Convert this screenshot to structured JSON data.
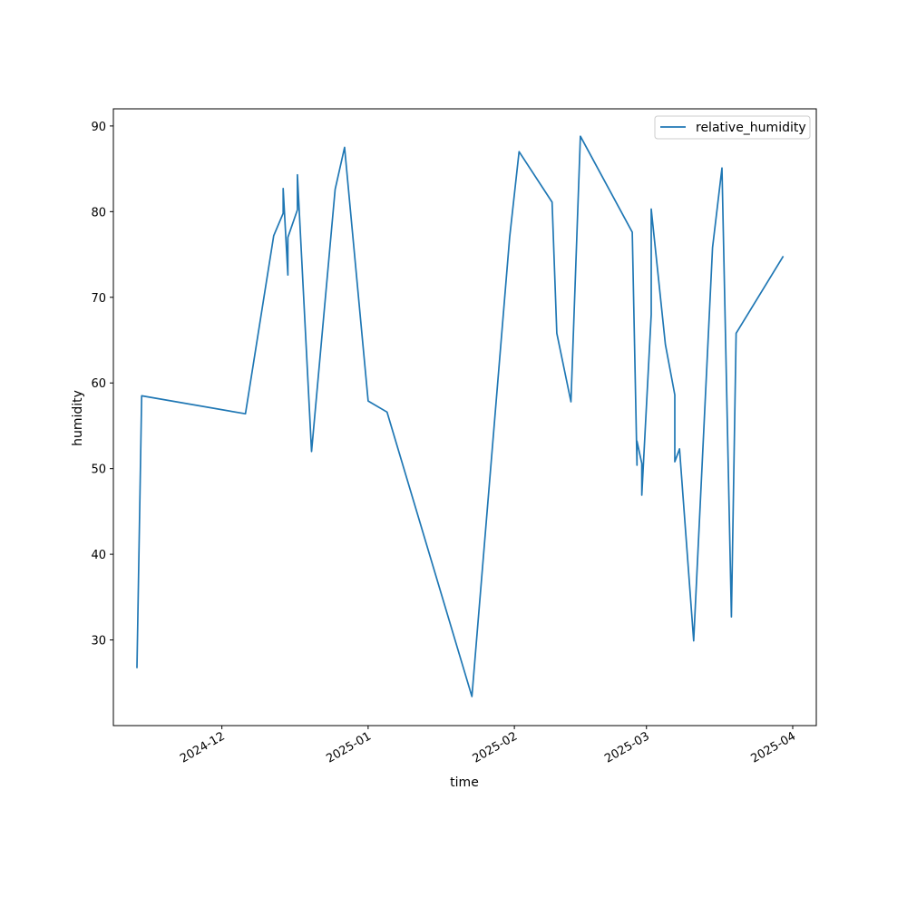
{
  "chart_data": {
    "type": "line",
    "title": "",
    "xlabel": "time",
    "ylabel": "humidity",
    "x_ticks": [
      {
        "date": "2024-12-01",
        "label": "2024-12"
      },
      {
        "date": "2025-01-01",
        "label": "2025-01"
      },
      {
        "date": "2025-02-01",
        "label": "2025-02"
      },
      {
        "date": "2025-03-01",
        "label": "2025-03"
      },
      {
        "date": "2025-04-01",
        "label": "2025-04"
      }
    ],
    "y_ticks": [
      30,
      40,
      50,
      60,
      70,
      80,
      90
    ],
    "xlim": [
      "2024-11-08",
      "2025-04-06"
    ],
    "ylim": [
      20,
      92
    ],
    "grid": false,
    "legend_position": "top-right",
    "series": [
      {
        "name": "relative_humidity",
        "color": "#1f77b4",
        "points": [
          {
            "x": "2024-11-13",
            "y": 26.7
          },
          {
            "x": "2024-11-14",
            "y": 58.5
          },
          {
            "x": "2024-12-06",
            "y": 56.4
          },
          {
            "x": "2024-12-12",
            "y": 77.2
          },
          {
            "x": "2024-12-14",
            "y": 79.8
          },
          {
            "x": "2024-12-14",
            "y": 82.7
          },
          {
            "x": "2024-12-15",
            "y": 72.6
          },
          {
            "x": "2024-12-15",
            "y": 77.0
          },
          {
            "x": "2024-12-17",
            "y": 80.2
          },
          {
            "x": "2024-12-17",
            "y": 84.3
          },
          {
            "x": "2024-12-20",
            "y": 52.0
          },
          {
            "x": "2024-12-25",
            "y": 82.6
          },
          {
            "x": "2024-12-27",
            "y": 87.5
          },
          {
            "x": "2025-01-01",
            "y": 57.9
          },
          {
            "x": "2025-01-05",
            "y": 56.6
          },
          {
            "x": "2025-01-23",
            "y": 23.4
          },
          {
            "x": "2025-01-31",
            "y": 77.0
          },
          {
            "x": "2025-02-02",
            "y": 87.0
          },
          {
            "x": "2025-02-09",
            "y": 81.1
          },
          {
            "x": "2025-02-10",
            "y": 65.8
          },
          {
            "x": "2025-02-13",
            "y": 57.8
          },
          {
            "x": "2025-02-15",
            "y": 88.8
          },
          {
            "x": "2025-02-26",
            "y": 77.6
          },
          {
            "x": "2025-02-27",
            "y": 50.4
          },
          {
            "x": "2025-02-27",
            "y": 53.2
          },
          {
            "x": "2025-02-28",
            "y": 50.6
          },
          {
            "x": "2025-02-28",
            "y": 46.9
          },
          {
            "x": "2025-03-02",
            "y": 68.0
          },
          {
            "x": "2025-03-02",
            "y": 80.3
          },
          {
            "x": "2025-03-05",
            "y": 64.5
          },
          {
            "x": "2025-03-07",
            "y": 58.6
          },
          {
            "x": "2025-03-07",
            "y": 50.8
          },
          {
            "x": "2025-03-08",
            "y": 52.3
          },
          {
            "x": "2025-03-11",
            "y": 29.9
          },
          {
            "x": "2025-03-15",
            "y": 75.8
          },
          {
            "x": "2025-03-17",
            "y": 85.1
          },
          {
            "x": "2025-03-19",
            "y": 32.7
          },
          {
            "x": "2025-03-20",
            "y": 65.8
          },
          {
            "x": "2025-03-30",
            "y": 74.8
          }
        ]
      }
    ]
  }
}
